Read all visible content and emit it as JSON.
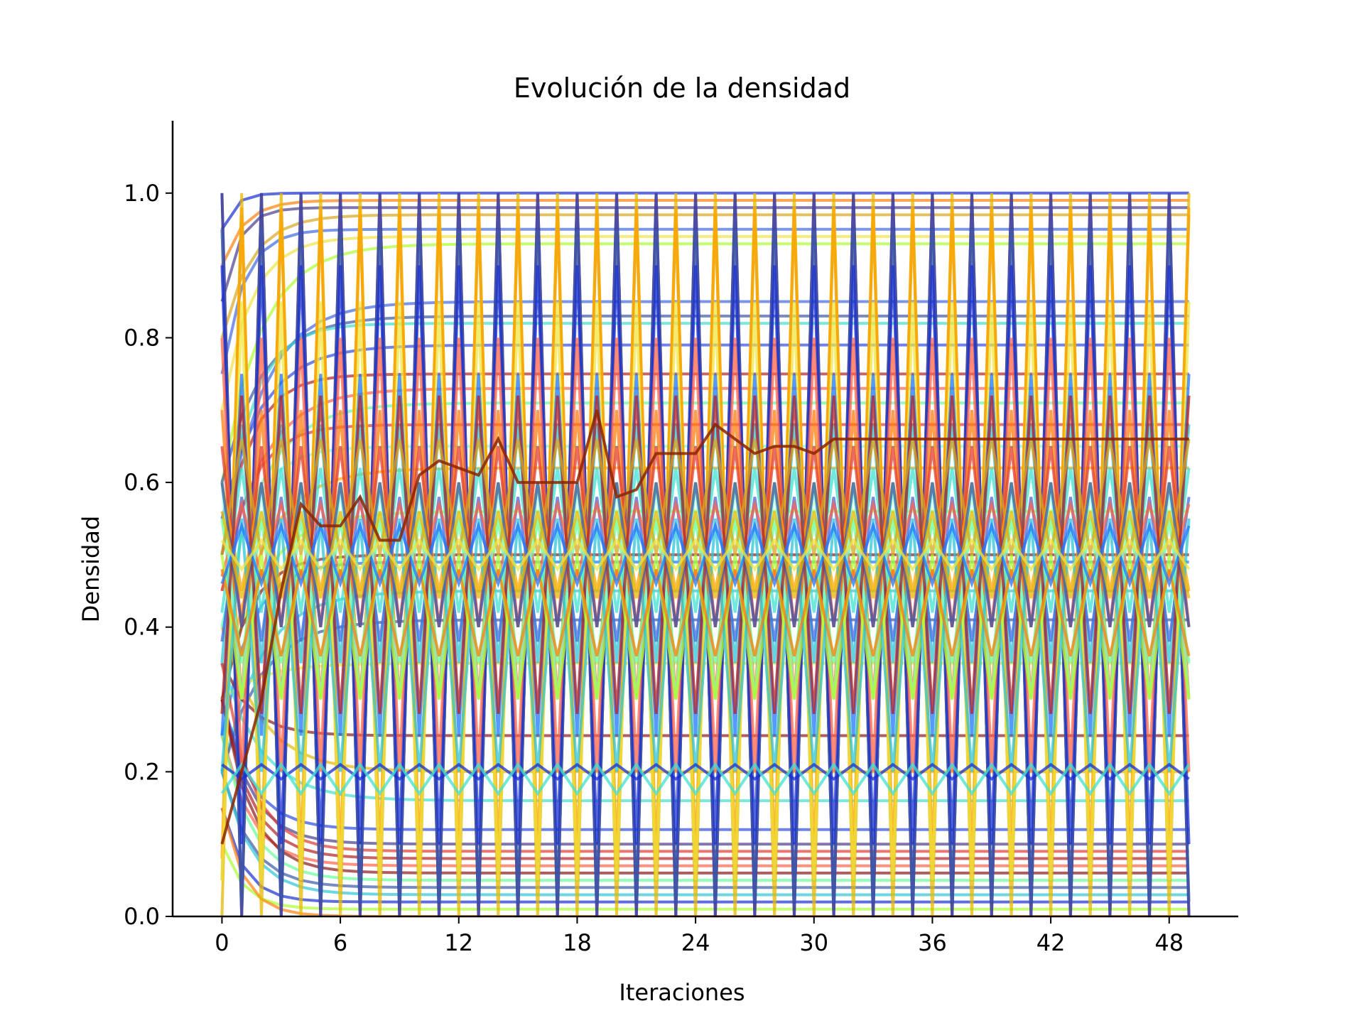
{
  "chart_data": {
    "type": "line",
    "title": "Evolución de la densidad",
    "xlabel": "Iteraciones",
    "ylabel": "Densidad",
    "xlim": [
      -2.5,
      51.5
    ],
    "ylim": [
      0,
      1.1
    ],
    "xticks": [
      0,
      6,
      12,
      18,
      24,
      30,
      36,
      42,
      48
    ],
    "xtick_labels": [
      "0",
      "6",
      "12",
      "18",
      "24",
      "30",
      "36",
      "42",
      "48"
    ],
    "yticks": [
      0.0,
      0.2,
      0.4,
      0.6,
      0.8,
      1.0
    ],
    "ytick_labels": [
      "0.0",
      "0.2",
      "0.4",
      "0.6",
      "0.8",
      "1.0"
    ],
    "grid": false,
    "legend": "none",
    "x": [
      0,
      1,
      2,
      3,
      4,
      5,
      6,
      7,
      8,
      9,
      10,
      11,
      12,
      13,
      14,
      15,
      16,
      17,
      18,
      19,
      20,
      21,
      22,
      23,
      24,
      25,
      26,
      27,
      28,
      29,
      30,
      31,
      32,
      33,
      34,
      35,
      36,
      37,
      38,
      39,
      40,
      41,
      42,
      43,
      44,
      45,
      46,
      47,
      48,
      49
    ],
    "palette": [
      "#1a2fd0",
      "#2f4fe0",
      "#3c5aa8",
      "#4169e1",
      "#1f77ff",
      "#2ec4d6",
      "#40e0d0",
      "#7fffd4",
      "#66ff99",
      "#adff2f",
      "#f0e442",
      "#e6b800",
      "#daa520",
      "#ffa500",
      "#ff7f0e",
      "#ff6347",
      "#e03c31",
      "#b22222",
      "#8b1a1a",
      "#483d8b"
    ],
    "highlight_series": {
      "color": "#8b2500",
      "values": [
        0.1,
        0.2,
        0.3,
        0.45,
        0.57,
        0.54,
        0.54,
        0.58,
        0.52,
        0.52,
        0.61,
        0.63,
        0.62,
        0.61,
        0.66,
        0.6,
        0.6,
        0.6,
        0.6,
        0.7,
        0.58,
        0.59,
        0.64,
        0.64,
        0.64,
        0.68,
        0.66,
        0.64,
        0.65,
        0.65,
        0.64,
        0.66,
        0.66,
        0.66,
        0.66,
        0.66,
        0.66,
        0.66,
        0.66,
        0.66,
        0.66,
        0.66,
        0.66,
        0.66,
        0.66,
        0.66,
        0.66,
        0.66,
        0.66,
        0.66
      ]
    },
    "series": {
      "constant": [
        {
          "start": 0.95,
          "end": 1.0,
          "k": 0.8,
          "color": "#1a2fd0"
        },
        {
          "start": 0.9,
          "end": 0.99,
          "k": 0.6,
          "color": "#ff7f0e"
        },
        {
          "start": 0.85,
          "end": 0.98,
          "k": 0.7,
          "color": "#483d8b"
        },
        {
          "start": 0.8,
          "end": 0.97,
          "k": 0.5,
          "color": "#daa520"
        },
        {
          "start": 0.75,
          "end": 0.95,
          "k": 0.6,
          "color": "#4169e1"
        },
        {
          "start": 0.7,
          "end": 0.94,
          "k": 0.5,
          "color": "#f0e442"
        },
        {
          "start": 0.6,
          "end": 0.93,
          "k": 0.4,
          "color": "#adff2f"
        },
        {
          "start": 0.5,
          "end": 0.85,
          "k": 0.4,
          "color": "#4169e1"
        },
        {
          "start": 0.6,
          "end": 0.83,
          "k": 0.4,
          "color": "#3c5aa8"
        },
        {
          "start": 0.5,
          "end": 0.82,
          "k": 0.5,
          "color": "#40e0d0"
        },
        {
          "start": 0.55,
          "end": 0.79,
          "k": 0.4,
          "color": "#2f4fe0"
        },
        {
          "start": 0.5,
          "end": 0.75,
          "k": 0.5,
          "color": "#b22222"
        },
        {
          "start": 0.45,
          "end": 0.73,
          "k": 0.4,
          "color": "#ff6347"
        },
        {
          "start": 0.4,
          "end": 0.71,
          "k": 0.4,
          "color": "#66ff99"
        },
        {
          "start": 0.45,
          "end": 0.68,
          "k": 0.5,
          "color": "#e03c31"
        },
        {
          "start": 0.4,
          "end": 0.65,
          "k": 0.5,
          "color": "#7fffd4"
        },
        {
          "start": 0.3,
          "end": 0.62,
          "k": 0.4,
          "color": "#ffa500"
        },
        {
          "start": 0.3,
          "end": 0.56,
          "k": 0.4,
          "color": "#adff2f"
        },
        {
          "start": 0.3,
          "end": 0.5,
          "k": 0.5,
          "color": "#8b1a1a"
        },
        {
          "start": 0.25,
          "end": 0.49,
          "k": 0.5,
          "color": "#1f77ff"
        },
        {
          "start": 0.2,
          "end": 0.45,
          "k": 0.4,
          "color": "#2ec4d6"
        },
        {
          "start": 0.2,
          "end": 0.41,
          "k": 0.4,
          "color": "#3c5aa8"
        },
        {
          "start": 0.3,
          "end": 0.35,
          "k": 0.4,
          "color": "#f0e442"
        },
        {
          "start": 0.35,
          "end": 0.25,
          "k": 0.5,
          "color": "#8b1a1a"
        },
        {
          "start": 0.4,
          "end": 0.2,
          "k": 0.4,
          "color": "#e6b800"
        },
        {
          "start": 0.35,
          "end": 0.16,
          "k": 0.4,
          "color": "#40e0d0"
        },
        {
          "start": 0.3,
          "end": 0.12,
          "k": 0.5,
          "color": "#2f4fe0"
        },
        {
          "start": 0.3,
          "end": 0.1,
          "k": 0.5,
          "color": "#483d8b"
        },
        {
          "start": 0.35,
          "end": 0.09,
          "k": 0.5,
          "color": "#e03c31"
        },
        {
          "start": 0.3,
          "end": 0.08,
          "k": 0.5,
          "color": "#b22222"
        },
        {
          "start": 0.25,
          "end": 0.07,
          "k": 0.5,
          "color": "#ff6347"
        },
        {
          "start": 0.3,
          "end": 0.06,
          "k": 0.5,
          "color": "#8b1a1a"
        },
        {
          "start": 0.25,
          "end": 0.05,
          "k": 0.5,
          "color": "#66ff99"
        },
        {
          "start": 0.2,
          "end": 0.04,
          "k": 0.5,
          "color": "#3c5aa8"
        },
        {
          "start": 0.2,
          "end": 0.03,
          "k": 0.5,
          "color": "#2ec4d6"
        },
        {
          "start": 0.15,
          "end": 0.02,
          "k": 0.6,
          "color": "#1a2fd0"
        },
        {
          "start": 0.1,
          "end": 0.01,
          "k": 0.6,
          "color": "#adff2f"
        },
        {
          "start": 0.15,
          "end": 0.0,
          "k": 0.6,
          "color": "#ff7f0e"
        }
      ],
      "oscillating": [
        {
          "a": 1.0,
          "b": 0.0,
          "start": 0,
          "color": "#2f4fe0"
        },
        {
          "a": 1.0,
          "b": 0.0,
          "start": 1,
          "color": "#e6b800"
        },
        {
          "a": 1.0,
          "b": 0.0,
          "start": 0,
          "color": "#483d8b"
        },
        {
          "a": 0.97,
          "b": 0.05,
          "start": 1,
          "color": "#daa520"
        },
        {
          "a": 0.95,
          "b": 0.02,
          "start": 0,
          "color": "#3c5aa8"
        },
        {
          "a": 0.98,
          "b": 0.08,
          "start": 1,
          "color": "#ffa500"
        },
        {
          "a": 0.9,
          "b": 0.1,
          "start": 0,
          "color": "#1a2fd0"
        },
        {
          "a": 0.85,
          "b": 0.05,
          "start": 1,
          "color": "#f0e442"
        },
        {
          "a": 0.8,
          "b": 0.2,
          "start": 0,
          "color": "#ff6347"
        },
        {
          "a": 0.75,
          "b": 0.25,
          "start": 1,
          "color": "#1f77ff"
        },
        {
          "a": 0.7,
          "b": 0.3,
          "start": 0,
          "color": "#ff7f0e"
        },
        {
          "a": 0.68,
          "b": 0.35,
          "start": 1,
          "color": "#2ec4d6"
        },
        {
          "a": 0.65,
          "b": 0.4,
          "start": 0,
          "color": "#e03c31"
        },
        {
          "a": 0.62,
          "b": 0.42,
          "start": 1,
          "color": "#40e0d0"
        },
        {
          "a": 0.6,
          "b": 0.45,
          "start": 0,
          "color": "#ffa500"
        },
        {
          "a": 0.58,
          "b": 0.38,
          "start": 1,
          "color": "#4169e1"
        },
        {
          "a": 0.55,
          "b": 0.35,
          "start": 0,
          "color": "#66ff99"
        },
        {
          "a": 0.57,
          "b": 0.47,
          "start": 1,
          "color": "#ff6347"
        },
        {
          "a": 0.6,
          "b": 0.3,
          "start": 0,
          "color": "#7fffd4"
        },
        {
          "a": 0.72,
          "b": 0.28,
          "start": 1,
          "color": "#b22222"
        },
        {
          "a": 0.5,
          "b": 0.3,
          "start": 0,
          "color": "#adff2f"
        },
        {
          "a": 0.55,
          "b": 0.2,
          "start": 1,
          "color": "#2ec4d6"
        },
        {
          "a": 0.48,
          "b": 0.36,
          "start": 0,
          "color": "#ff7f0e"
        },
        {
          "a": 0.66,
          "b": 0.5,
          "start": 1,
          "color": "#daa520"
        },
        {
          "a": 0.6,
          "b": 0.4,
          "start": 0,
          "color": "#3c5aa8"
        },
        {
          "a": 0.21,
          "b": 0.19,
          "start": 0,
          "color": "#1a2fd0"
        },
        {
          "a": 0.21,
          "b": 0.17,
          "start": 1,
          "color": "#40e0d0"
        },
        {
          "a": 0.56,
          "b": 0.44,
          "start": 0,
          "color": "#e6b800"
        },
        {
          "a": 0.54,
          "b": 0.46,
          "start": 1,
          "color": "#1f77ff"
        },
        {
          "a": 0.52,
          "b": 0.48,
          "start": 0,
          "color": "#f0e442"
        }
      ]
    }
  }
}
